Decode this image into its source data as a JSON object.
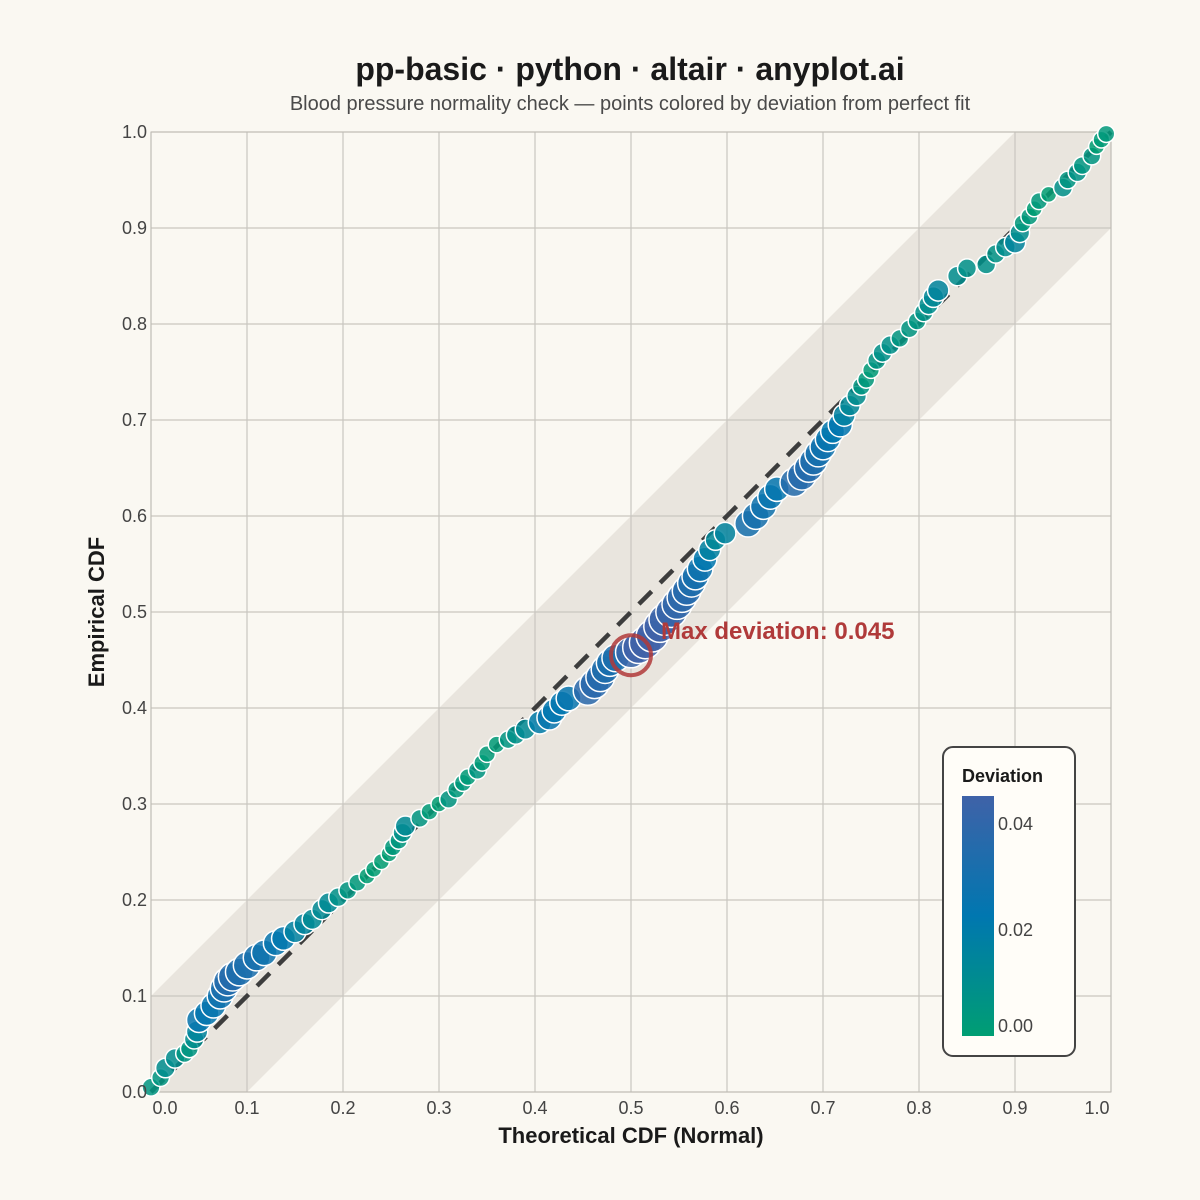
{
  "chart_data": {
    "type": "scatter",
    "title": "pp-basic · python · altair · anyplot.ai",
    "subtitle": "Blood pressure normality check — points colored by deviation from perfect fit",
    "xlabel": "Theoretical CDF (Normal)",
    "ylabel": "Empirical CDF",
    "xlim": [
      0,
      1
    ],
    "ylim": [
      0,
      1
    ],
    "x_ticks": [
      "0.0",
      "0.1",
      "0.2",
      "0.3",
      "0.4",
      "0.5",
      "0.6",
      "0.7",
      "0.8",
      "0.9",
      "1.0"
    ],
    "y_ticks": [
      "0.0",
      "0.1",
      "0.2",
      "0.3",
      "0.4",
      "0.5",
      "0.6",
      "0.7",
      "0.8",
      "0.9",
      "1.0"
    ],
    "grid": true,
    "reference_line": "y = x (dashed)",
    "confidence_band_halfwidth": 0.1,
    "annotation": {
      "text": "Max deviation: 0.045",
      "x": 0.5,
      "y": 0.455,
      "color": "#B03A3A"
    },
    "legend": {
      "title": "Deviation",
      "placement": "bottom-right",
      "type": "gradient",
      "labels": [
        "0.04",
        "0.02",
        "0.00"
      ],
      "domain": [
        0,
        0.045
      ],
      "colors": [
        "#009E73",
        "#0077B0",
        "#3F62A8"
      ]
    },
    "points": [
      [
        0.0,
        0.005
      ],
      [
        0.01,
        0.015
      ],
      [
        0.015,
        0.025
      ],
      [
        0.025,
        0.035
      ],
      [
        0.035,
        0.04
      ],
      [
        0.04,
        0.045
      ],
      [
        0.045,
        0.055
      ],
      [
        0.048,
        0.063
      ],
      [
        0.05,
        0.075
      ],
      [
        0.058,
        0.082
      ],
      [
        0.065,
        0.09
      ],
      [
        0.072,
        0.1
      ],
      [
        0.076,
        0.108
      ],
      [
        0.08,
        0.115
      ],
      [
        0.085,
        0.12
      ],
      [
        0.092,
        0.125
      ],
      [
        0.1,
        0.132
      ],
      [
        0.11,
        0.14
      ],
      [
        0.118,
        0.145
      ],
      [
        0.13,
        0.155
      ],
      [
        0.138,
        0.16
      ],
      [
        0.15,
        0.167
      ],
      [
        0.16,
        0.175
      ],
      [
        0.168,
        0.18
      ],
      [
        0.178,
        0.19
      ],
      [
        0.185,
        0.197
      ],
      [
        0.195,
        0.203
      ],
      [
        0.205,
        0.21
      ],
      [
        0.215,
        0.218
      ],
      [
        0.225,
        0.225
      ],
      [
        0.232,
        0.232
      ],
      [
        0.24,
        0.24
      ],
      [
        0.248,
        0.248
      ],
      [
        0.252,
        0.255
      ],
      [
        0.258,
        0.262
      ],
      [
        0.262,
        0.27
      ],
      [
        0.265,
        0.277
      ],
      [
        0.28,
        0.285
      ],
      [
        0.29,
        0.292
      ],
      [
        0.3,
        0.3
      ],
      [
        0.31,
        0.305
      ],
      [
        0.318,
        0.315
      ],
      [
        0.325,
        0.322
      ],
      [
        0.33,
        0.328
      ],
      [
        0.34,
        0.335
      ],
      [
        0.345,
        0.343
      ],
      [
        0.35,
        0.352
      ],
      [
        0.36,
        0.362
      ],
      [
        0.372,
        0.367
      ],
      [
        0.38,
        0.372
      ],
      [
        0.39,
        0.378
      ],
      [
        0.405,
        0.385
      ],
      [
        0.415,
        0.39
      ],
      [
        0.42,
        0.397
      ],
      [
        0.428,
        0.405
      ],
      [
        0.435,
        0.41
      ],
      [
        0.455,
        0.418
      ],
      [
        0.462,
        0.425
      ],
      [
        0.468,
        0.432
      ],
      [
        0.473,
        0.44
      ],
      [
        0.478,
        0.447
      ],
      [
        0.484,
        0.452
      ],
      [
        0.5,
        0.458
      ],
      [
        0.508,
        0.463
      ],
      [
        0.515,
        0.468
      ],
      [
        0.522,
        0.475
      ],
      [
        0.53,
        0.485
      ],
      [
        0.535,
        0.492
      ],
      [
        0.542,
        0.5
      ],
      [
        0.548,
        0.508
      ],
      [
        0.553,
        0.515
      ],
      [
        0.558,
        0.522
      ],
      [
        0.563,
        0.53
      ],
      [
        0.567,
        0.537
      ],
      [
        0.572,
        0.545
      ],
      [
        0.577,
        0.555
      ],
      [
        0.582,
        0.565
      ],
      [
        0.588,
        0.575
      ],
      [
        0.598,
        0.582
      ],
      [
        0.622,
        0.592
      ],
      [
        0.63,
        0.6
      ],
      [
        0.638,
        0.61
      ],
      [
        0.645,
        0.62
      ],
      [
        0.652,
        0.628
      ],
      [
        0.67,
        0.635
      ],
      [
        0.678,
        0.642
      ],
      [
        0.685,
        0.65
      ],
      [
        0.69,
        0.657
      ],
      [
        0.695,
        0.665
      ],
      [
        0.7,
        0.672
      ],
      [
        0.705,
        0.68
      ],
      [
        0.71,
        0.688
      ],
      [
        0.718,
        0.695
      ],
      [
        0.722,
        0.705
      ],
      [
        0.728,
        0.715
      ],
      [
        0.735,
        0.725
      ],
      [
        0.74,
        0.735
      ],
      [
        0.745,
        0.742
      ],
      [
        0.75,
        0.752
      ],
      [
        0.756,
        0.762
      ],
      [
        0.762,
        0.77
      ],
      [
        0.77,
        0.778
      ],
      [
        0.78,
        0.785
      ],
      [
        0.79,
        0.795
      ],
      [
        0.798,
        0.803
      ],
      [
        0.805,
        0.812
      ],
      [
        0.81,
        0.82
      ],
      [
        0.815,
        0.828
      ],
      [
        0.82,
        0.835
      ],
      [
        0.84,
        0.85
      ],
      [
        0.85,
        0.858
      ],
      [
        0.87,
        0.862
      ],
      [
        0.88,
        0.873
      ],
      [
        0.89,
        0.88
      ],
      [
        0.9,
        0.885
      ],
      [
        0.905,
        0.895
      ],
      [
        0.908,
        0.905
      ],
      [
        0.915,
        0.912
      ],
      [
        0.92,
        0.92
      ],
      [
        0.925,
        0.928
      ],
      [
        0.935,
        0.935
      ],
      [
        0.95,
        0.942
      ],
      [
        0.955,
        0.95
      ],
      [
        0.965,
        0.958
      ],
      [
        0.97,
        0.965
      ],
      [
        0.98,
        0.975
      ],
      [
        0.985,
        0.985
      ],
      [
        0.99,
        0.992
      ],
      [
        0.995,
        0.998
      ]
    ]
  }
}
